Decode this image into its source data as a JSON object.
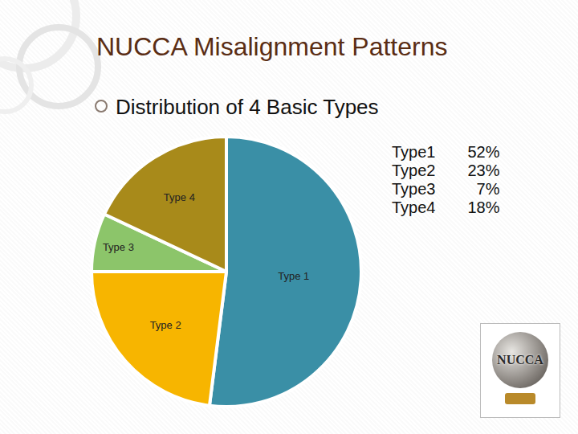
{
  "title": "NUCCA Misalignment Patterns",
  "bullet": "Distribution of 4 Basic Types",
  "logo_text": "NUCCA",
  "chart_data": {
    "type": "pie",
    "categories": [
      "Type 1",
      "Type 2",
      "Type 3",
      "Type 4"
    ],
    "values": [
      52,
      23,
      7,
      18
    ],
    "value_labels": [
      "52%",
      "23%",
      "7%",
      "18%"
    ],
    "side_labels": [
      "Type1",
      "Type2",
      "Type3",
      "Type4"
    ],
    "colors": [
      "#3a8fa6",
      "#f7b500",
      "#8cc56a",
      "#a88a1a"
    ],
    "data_labels": false
  }
}
